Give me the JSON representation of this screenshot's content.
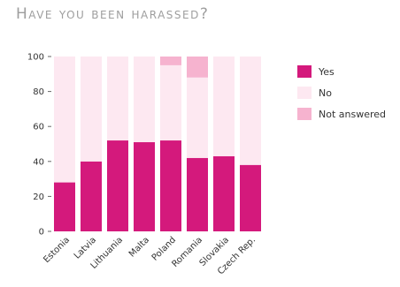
{
  "chart_data": {
    "type": "bar",
    "stacked": true,
    "title": "Have you been harassed?",
    "categories": [
      "Estonia",
      "Latvia",
      "Lithuania",
      "Malta",
      "Poland",
      "Romania",
      "Slovakia",
      "Czech Rep."
    ],
    "series": [
      {
        "name": "Yes",
        "color": "#d4197c",
        "values": [
          28,
          40,
          52,
          51,
          52,
          42,
          43,
          38
        ]
      },
      {
        "name": "No",
        "color": "#fde8f1",
        "values": [
          72,
          60,
          48,
          49,
          43,
          46,
          57,
          62
        ]
      },
      {
        "name": "Not answered",
        "color": "#f6b3cf",
        "values": [
          0,
          0,
          0,
          0,
          5,
          12,
          0,
          0
        ]
      }
    ],
    "yticks": [
      0,
      20,
      40,
      60,
      80,
      100
    ],
    "ylim": [
      0,
      100
    ],
    "legend_position": "right",
    "grid": false
  }
}
